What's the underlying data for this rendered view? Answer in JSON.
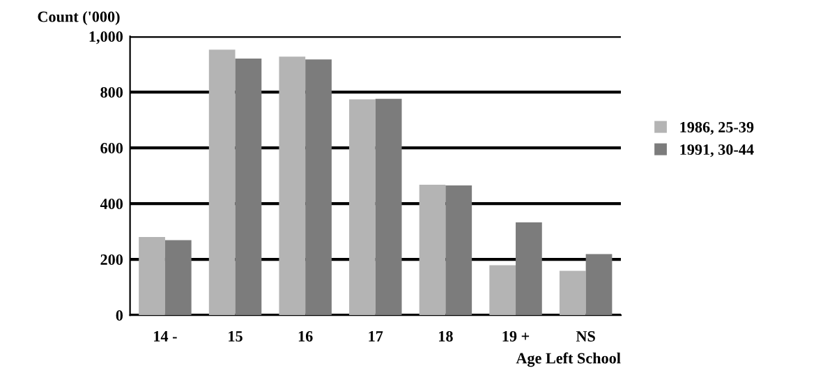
{
  "chart_data": {
    "type": "bar",
    "ylabel": "Count ('000)",
    "xlabel": "Age Left School",
    "categories": [
      "14 -",
      "15",
      "16",
      "17",
      "18",
      "19 +",
      "NS"
    ],
    "series": [
      {
        "name": "1986, 25-39",
        "color": "#b4b4b4",
        "values": [
          280,
          952,
          927,
          774,
          468,
          179,
          159
        ]
      },
      {
        "name": "1991, 30-44",
        "color": "#7c7c7c",
        "values": [
          269,
          920,
          917,
          776,
          465,
          333,
          219
        ]
      }
    ],
    "ylim": [
      0,
      1000
    ],
    "yticks": [
      0,
      200,
      400,
      600,
      800,
      {
        "value": 1000,
        "label": "1,000"
      }
    ],
    "grid": "y",
    "legend": "right"
  }
}
